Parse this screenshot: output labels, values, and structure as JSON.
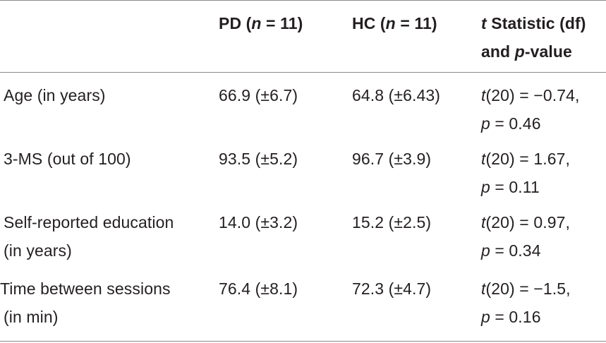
{
  "table": {
    "headers": {
      "col1": "",
      "pd": {
        "pre": "PD (",
        "var": "n",
        "post": " = 11)"
      },
      "hc": {
        "pre": "HC (",
        "var": "n",
        "post": " = 11)"
      },
      "stat_line1": {
        "var": "t",
        "post": " Statistic (df)"
      },
      "stat_line2": {
        "pre": "and ",
        "var": "p",
        "post": "-value"
      }
    },
    "rows": [
      {
        "label_lines": [
          "Age (in years)"
        ],
        "pd": "66.9 (±6.7)",
        "hc": "64.8 (±6.43)",
        "t_text": "(20) = −0.74,",
        "p_text": " = 0.46"
      },
      {
        "label_lines": [
          "3-MS (out of 100)"
        ],
        "pd": "93.5 (±5.2)",
        "hc": "96.7 (±3.9)",
        "t_text": "(20) = 1.67,",
        "p_text": " = 0.11"
      },
      {
        "label_lines": [
          "Self-reported education",
          "(in years)"
        ],
        "pd": "14.0 (±3.2)",
        "hc": "15.2 (±2.5)",
        "t_text": "(20) = 0.97,",
        "p_text": " = 0.34"
      },
      {
        "label_lines": [
          "Time between sessions",
          "(in min)"
        ],
        "pd": "76.4 (±8.1)",
        "hc": "72.3 (±4.7)",
        "t_text": "(20) = −1.5,",
        "p_text": " = 0.16"
      }
    ],
    "symbols": {
      "t": "t",
      "p": "p"
    }
  }
}
